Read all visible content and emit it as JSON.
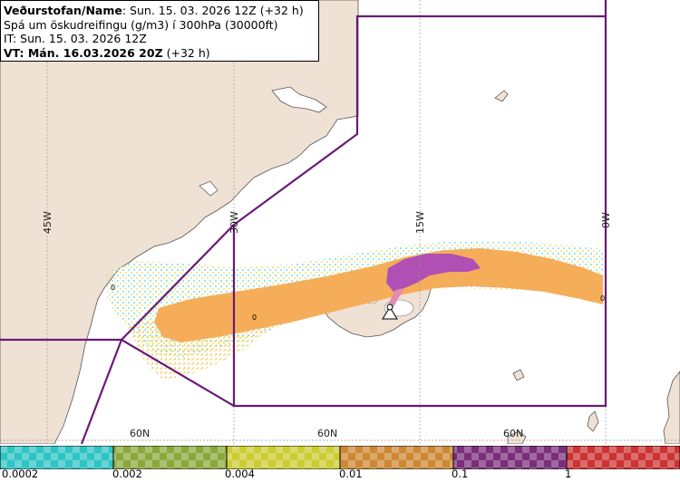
{
  "header": {
    "line1_label": "Veðurstofan/Name",
    "line1_value": ": Sun. 15. 03. 2026 12Z (+32 h)",
    "line2": "Spá um öskudreifingu (g/m3) í 300hPa (30000ft)",
    "line3": "IT: Sun. 15. 03. 2026 12Z",
    "line4": "VT: Mán. 16.03.2026 20Z",
    "line4_suffix": " (+32 h)"
  },
  "grid_labels": {
    "lon": [
      "45W",
      "30W",
      "15W",
      "0W"
    ],
    "lat": [
      "60N",
      "60N",
      "60N"
    ]
  },
  "markers": {
    "zero_labels": [
      "0",
      "0",
      "0"
    ]
  },
  "legend": {
    "colors": [
      "#2ec4c4",
      "#8aa83a",
      "#cccc33",
      "#cc8833",
      "#7a2f7a",
      "#cc3333"
    ],
    "ticks": [
      "0.0002",
      "0.002",
      "0.004",
      "0.01",
      "0.1",
      "1"
    ]
  },
  "colors": {
    "land": "#f0e1d5",
    "sea": "#ffffff",
    "border": "#6a1a76",
    "plume_orange": "#f5ad5a",
    "plume_core": "#b04fb4",
    "plume_yellow": "#f0e67a",
    "plume_cyan": "#8fe4e4"
  }
}
